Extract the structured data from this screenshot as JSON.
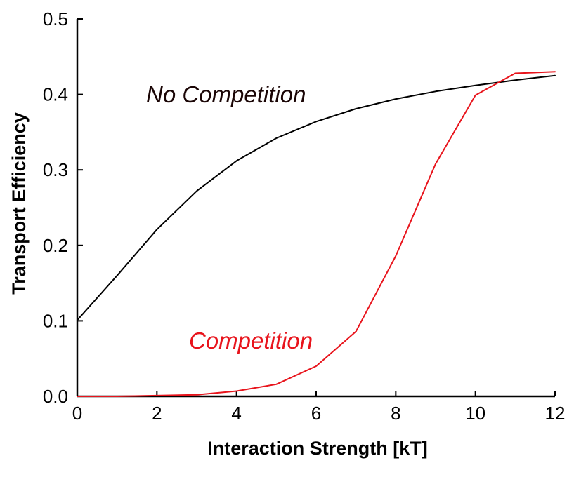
{
  "chart_data": {
    "type": "line",
    "xlabel": "Interaction Strength [kT]",
    "ylabel": "Transport Efficiency",
    "xlim": [
      0,
      12
    ],
    "ylim": [
      0,
      0.5
    ],
    "x_ticks": [
      "0",
      "2",
      "4",
      "6",
      "8",
      "10",
      "12"
    ],
    "y_ticks": [
      "0.0",
      "0.1",
      "0.2",
      "0.3",
      "0.4",
      "0.5"
    ],
    "grid": false,
    "legend": "none",
    "x": [
      0,
      1,
      2,
      3,
      4,
      5,
      6,
      7,
      8,
      9,
      10,
      11,
      12
    ],
    "series": [
      {
        "name": "No Competition",
        "color": "#000000",
        "values": [
          0.101,
          0.16,
          0.221,
          0.272,
          0.312,
          0.342,
          0.364,
          0.381,
          0.394,
          0.404,
          0.412,
          0.419,
          0.425
        ]
      },
      {
        "name": "Competition",
        "color": "#e8141c",
        "values": [
          0.0,
          0.0,
          0.001,
          0.002,
          0.007,
          0.016,
          0.04,
          0.086,
          0.186,
          0.308,
          0.399,
          0.428,
          0.43
        ]
      }
    ]
  }
}
